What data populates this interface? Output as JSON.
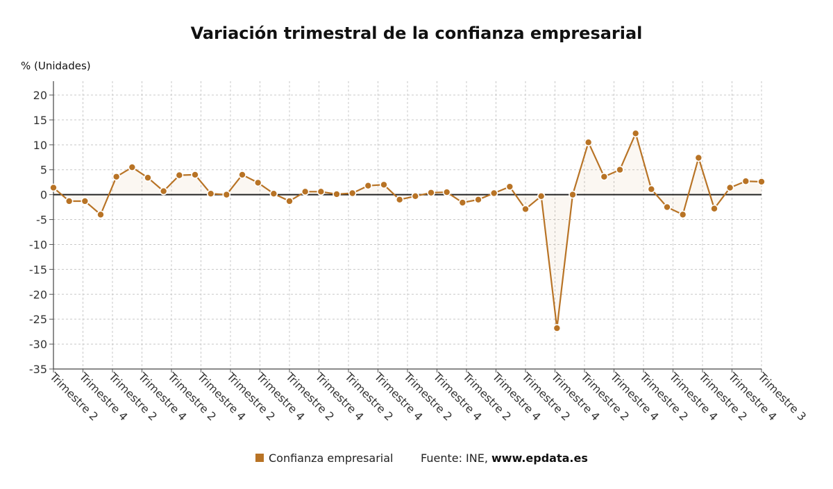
{
  "chart_data": {
    "type": "line",
    "title": "Variación trimestral de la confianza empresarial",
    "ylabel": "% (Unidades)",
    "ylim": [
      -35,
      20
    ],
    "yticks": [
      20,
      15,
      10,
      5,
      0,
      -5,
      -10,
      -15,
      -20,
      -25,
      -30,
      -35
    ],
    "grid": true,
    "legend_position": "bottom-center",
    "x_tick_labels": [
      "Trimestre 2",
      "Trimestre 4",
      "Trimestre 2",
      "Trimestre 4",
      "Trimestre 2",
      "Trimestre 4",
      "Trimestre 2",
      "Trimestre 4",
      "Trimestre 2",
      "Trimestre 4",
      "Trimestre 2",
      "Trimestre 4",
      "Trimestre 2",
      "Trimestre 4",
      "Trimestre 2",
      "Trimestre 4",
      "Trimestre 2",
      "Trimestre 4",
      "Trimestre 2",
      "Trimestre 4",
      "Trimestre 2",
      "Trimestre 4",
      "Trimestre 2",
      "Trimestre 4",
      "Trimestre 3"
    ],
    "series": [
      {
        "name": "Confianza empresarial",
        "color": "#b87325",
        "values": [
          1.4,
          -1.3,
          -1.3,
          -4.0,
          3.6,
          5.5,
          3.4,
          0.7,
          3.9,
          4.0,
          0.2,
          0.0,
          4.0,
          2.4,
          0.2,
          -1.3,
          0.6,
          0.6,
          0.1,
          0.3,
          1.8,
          2.0,
          -1.0,
          -0.3,
          0.4,
          0.5,
          -1.6,
          -1.0,
          0.3,
          1.6,
          -2.9,
          -0.3,
          -26.8,
          0.0,
          10.5,
          3.6,
          5.0,
          12.3,
          1.1,
          -2.5,
          -4.0,
          7.4,
          -2.8,
          1.4,
          2.7,
          2.6
        ]
      }
    ]
  },
  "legend": {
    "label": "Confianza empresarial",
    "color": "#b87325"
  },
  "source": {
    "prefix": "Fuente: INE, ",
    "link": "www.epdata.es"
  }
}
